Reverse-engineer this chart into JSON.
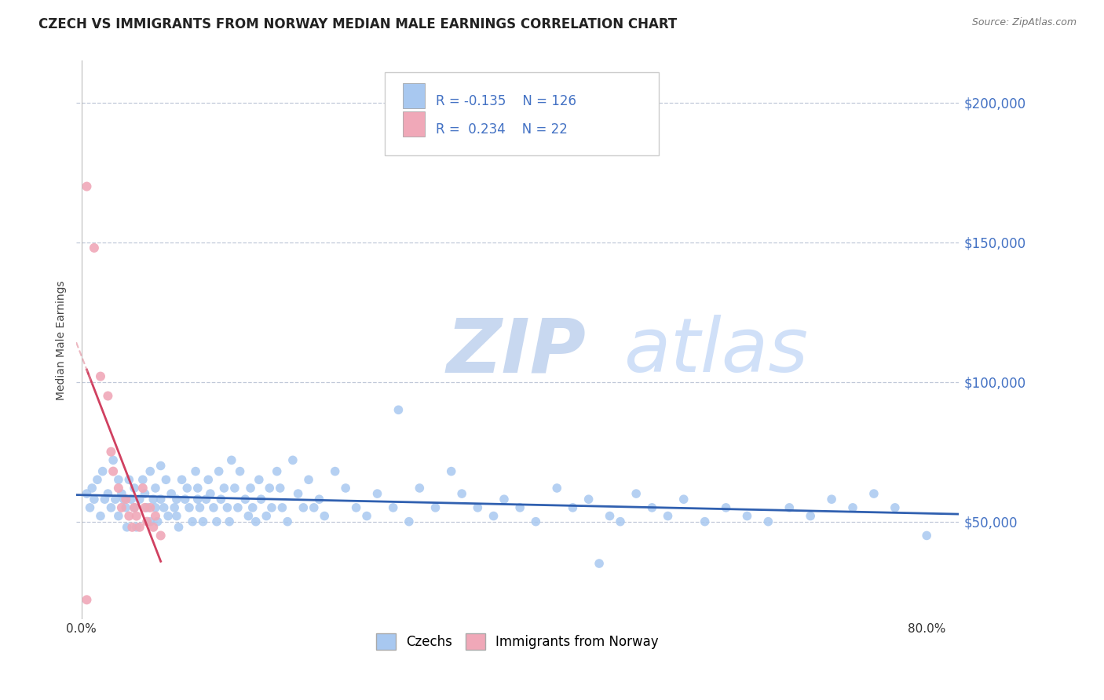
{
  "title": "CZECH VS IMMIGRANTS FROM NORWAY MEDIAN MALE EARNINGS CORRELATION CHART",
  "source": "Source: ZipAtlas.com",
  "ylabel": "Median Male Earnings",
  "xlim": [
    -0.005,
    0.83
  ],
  "ylim": [
    15000,
    215000
  ],
  "yticks": [
    50000,
    100000,
    150000,
    200000
  ],
  "ytick_labels": [
    "$50,000",
    "$100,000",
    "$150,000",
    "$200,000"
  ],
  "xticks": [
    0.0,
    0.1,
    0.2,
    0.3,
    0.4,
    0.5,
    0.6,
    0.7,
    0.8
  ],
  "xtick_labels": [
    "0.0%",
    "",
    "",
    "",
    "",
    "",
    "",
    "",
    "80.0%"
  ],
  "blue_color": "#a8c8f0",
  "pink_color": "#f0a8b8",
  "line_blue": "#3060b0",
  "line_pink": "#d04060",
  "line_pink_dash": "#e08898",
  "r_blue": -0.135,
  "n_blue": 126,
  "r_pink": 0.234,
  "n_pink": 22,
  "legend_label_blue": "Czechs",
  "legend_label_pink": "Immigrants from Norway",
  "watermark_zip": "ZIP",
  "watermark_atlas": "atlas",
  "watermark_color_zip": "#c8d8f0",
  "watermark_color_atlas": "#d0e0f8",
  "axis_color": "#4472c4",
  "grid_color": "#c0c8d8",
  "background_color": "#ffffff",
  "blue_dots_x": [
    0.005,
    0.008,
    0.01,
    0.012,
    0.015,
    0.018,
    0.02,
    0.022,
    0.025,
    0.028,
    0.03,
    0.032,
    0.035,
    0.035,
    0.038,
    0.04,
    0.042,
    0.043,
    0.045,
    0.047,
    0.05,
    0.05,
    0.052,
    0.055,
    0.058,
    0.06,
    0.062,
    0.065,
    0.065,
    0.068,
    0.07,
    0.07,
    0.072,
    0.075,
    0.075,
    0.078,
    0.08,
    0.082,
    0.085,
    0.088,
    0.09,
    0.09,
    0.092,
    0.095,
    0.098,
    0.1,
    0.102,
    0.105,
    0.108,
    0.11,
    0.11,
    0.112,
    0.115,
    0.118,
    0.12,
    0.122,
    0.125,
    0.128,
    0.13,
    0.132,
    0.135,
    0.138,
    0.14,
    0.142,
    0.145,
    0.148,
    0.15,
    0.155,
    0.158,
    0.16,
    0.162,
    0.165,
    0.168,
    0.17,
    0.175,
    0.178,
    0.18,
    0.185,
    0.188,
    0.19,
    0.195,
    0.2,
    0.205,
    0.21,
    0.215,
    0.22,
    0.225,
    0.23,
    0.24,
    0.25,
    0.26,
    0.27,
    0.28,
    0.295,
    0.31,
    0.32,
    0.335,
    0.35,
    0.36,
    0.375,
    0.39,
    0.4,
    0.415,
    0.43,
    0.45,
    0.465,
    0.48,
    0.5,
    0.51,
    0.525,
    0.54,
    0.555,
    0.57,
    0.59,
    0.61,
    0.63,
    0.65,
    0.67,
    0.69,
    0.71,
    0.73,
    0.75,
    0.77,
    0.8,
    0.3,
    0.49
  ],
  "blue_dots_y": [
    60000,
    55000,
    62000,
    58000,
    65000,
    52000,
    68000,
    58000,
    60000,
    55000,
    72000,
    58000,
    65000,
    52000,
    60000,
    58000,
    55000,
    48000,
    65000,
    58000,
    62000,
    55000,
    48000,
    58000,
    65000,
    60000,
    55000,
    50000,
    68000,
    58000,
    62000,
    55000,
    50000,
    70000,
    58000,
    55000,
    65000,
    52000,
    60000,
    55000,
    58000,
    52000,
    48000,
    65000,
    58000,
    62000,
    55000,
    50000,
    68000,
    58000,
    62000,
    55000,
    50000,
    58000,
    65000,
    60000,
    55000,
    50000,
    68000,
    58000,
    62000,
    55000,
    50000,
    72000,
    62000,
    55000,
    68000,
    58000,
    52000,
    62000,
    55000,
    50000,
    65000,
    58000,
    52000,
    62000,
    55000,
    68000,
    62000,
    55000,
    50000,
    72000,
    60000,
    55000,
    65000,
    55000,
    58000,
    52000,
    68000,
    62000,
    55000,
    52000,
    60000,
    55000,
    50000,
    62000,
    55000,
    68000,
    60000,
    55000,
    52000,
    58000,
    55000,
    50000,
    62000,
    55000,
    58000,
    52000,
    50000,
    60000,
    55000,
    52000,
    58000,
    50000,
    55000,
    52000,
    50000,
    55000,
    52000,
    58000,
    55000,
    60000,
    55000,
    45000,
    90000,
    35000
  ],
  "pink_dots_x": [
    0.005,
    0.012,
    0.018,
    0.025,
    0.028,
    0.03,
    0.035,
    0.038,
    0.042,
    0.045,
    0.048,
    0.05,
    0.052,
    0.055,
    0.058,
    0.06,
    0.062,
    0.065,
    0.068,
    0.07,
    0.075,
    0.005
  ],
  "pink_dots_y": [
    170000,
    148000,
    102000,
    95000,
    75000,
    68000,
    62000,
    55000,
    58000,
    52000,
    48000,
    55000,
    52000,
    48000,
    62000,
    55000,
    50000,
    55000,
    48000,
    52000,
    45000,
    22000
  ]
}
